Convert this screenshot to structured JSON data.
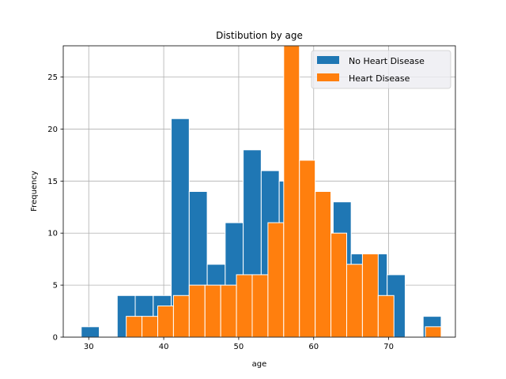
{
  "chart_data": {
    "type": "bar",
    "title": "Distibution by age",
    "xlabel": "age",
    "ylabel": "Frequency",
    "xlim": [
      26.6,
      78.9
    ],
    "ylim": [
      0,
      28
    ],
    "grid": true,
    "legend_position": "top-right",
    "x_ticks": [
      30,
      40,
      50,
      60,
      70
    ],
    "y_ticks": [
      0,
      5,
      10,
      15,
      20,
      25
    ],
    "series": [
      {
        "name": "No Heart Disease",
        "color": "#1f77b4",
        "bins": [
          {
            "x0": 29.0,
            "x1": 31.4,
            "count": 1
          },
          {
            "x0": 33.8,
            "x1": 36.2,
            "count": 4
          },
          {
            "x0": 36.2,
            "x1": 38.6,
            "count": 4
          },
          {
            "x0": 38.6,
            "x1": 41.0,
            "count": 4
          },
          {
            "x0": 41.0,
            "x1": 43.4,
            "count": 21
          },
          {
            "x0": 43.4,
            "x1": 45.8,
            "count": 14
          },
          {
            "x0": 45.8,
            "x1": 48.2,
            "count": 7
          },
          {
            "x0": 48.2,
            "x1": 50.6,
            "count": 11
          },
          {
            "x0": 50.6,
            "x1": 53.0,
            "count": 18
          },
          {
            "x0": 53.0,
            "x1": 55.4,
            "count": 16
          },
          {
            "x0": 55.4,
            "x1": 57.8,
            "count": 15
          },
          {
            "x0": 57.8,
            "x1": 60.2,
            "count": 11
          },
          {
            "x0": 60.2,
            "x1": 62.6,
            "count": 8
          },
          {
            "x0": 62.6,
            "x1": 65.0,
            "count": 13
          },
          {
            "x0": 65.0,
            "x1": 67.4,
            "count": 8
          },
          {
            "x0": 67.4,
            "x1": 69.8,
            "count": 8
          },
          {
            "x0": 69.8,
            "x1": 72.2,
            "count": 6
          },
          {
            "x0": 74.6,
            "x1": 77.0,
            "count": 2
          }
        ]
      },
      {
        "name": "Heart Disease",
        "color": "#ff7f0e",
        "bins": [
          {
            "x0": 35.0,
            "x1": 37.1,
            "count": 2
          },
          {
            "x0": 37.1,
            "x1": 39.2,
            "count": 2
          },
          {
            "x0": 39.2,
            "x1": 41.3,
            "count": 3
          },
          {
            "x0": 41.3,
            "x1": 43.4,
            "count": 4
          },
          {
            "x0": 43.4,
            "x1": 45.5,
            "count": 5
          },
          {
            "x0": 45.5,
            "x1": 47.6,
            "count": 5
          },
          {
            "x0": 47.6,
            "x1": 49.7,
            "count": 5
          },
          {
            "x0": 49.7,
            "x1": 51.8,
            "count": 6
          },
          {
            "x0": 51.8,
            "x1": 53.9,
            "count": 6
          },
          {
            "x0": 53.9,
            "x1": 56.0,
            "count": 11
          },
          {
            "x0": 56.0,
            "x1": 58.1,
            "count": 28
          },
          {
            "x0": 58.1,
            "x1": 60.2,
            "count": 17
          },
          {
            "x0": 60.2,
            "x1": 62.3,
            "count": 14
          },
          {
            "x0": 62.3,
            "x1": 64.4,
            "count": 10
          },
          {
            "x0": 64.4,
            "x1": 66.5,
            "count": 7
          },
          {
            "x0": 66.5,
            "x1": 68.6,
            "count": 8
          },
          {
            "x0": 68.6,
            "x1": 70.7,
            "count": 4
          },
          {
            "x0": 74.9,
            "x1": 77.0,
            "count": 1
          }
        ]
      }
    ]
  }
}
